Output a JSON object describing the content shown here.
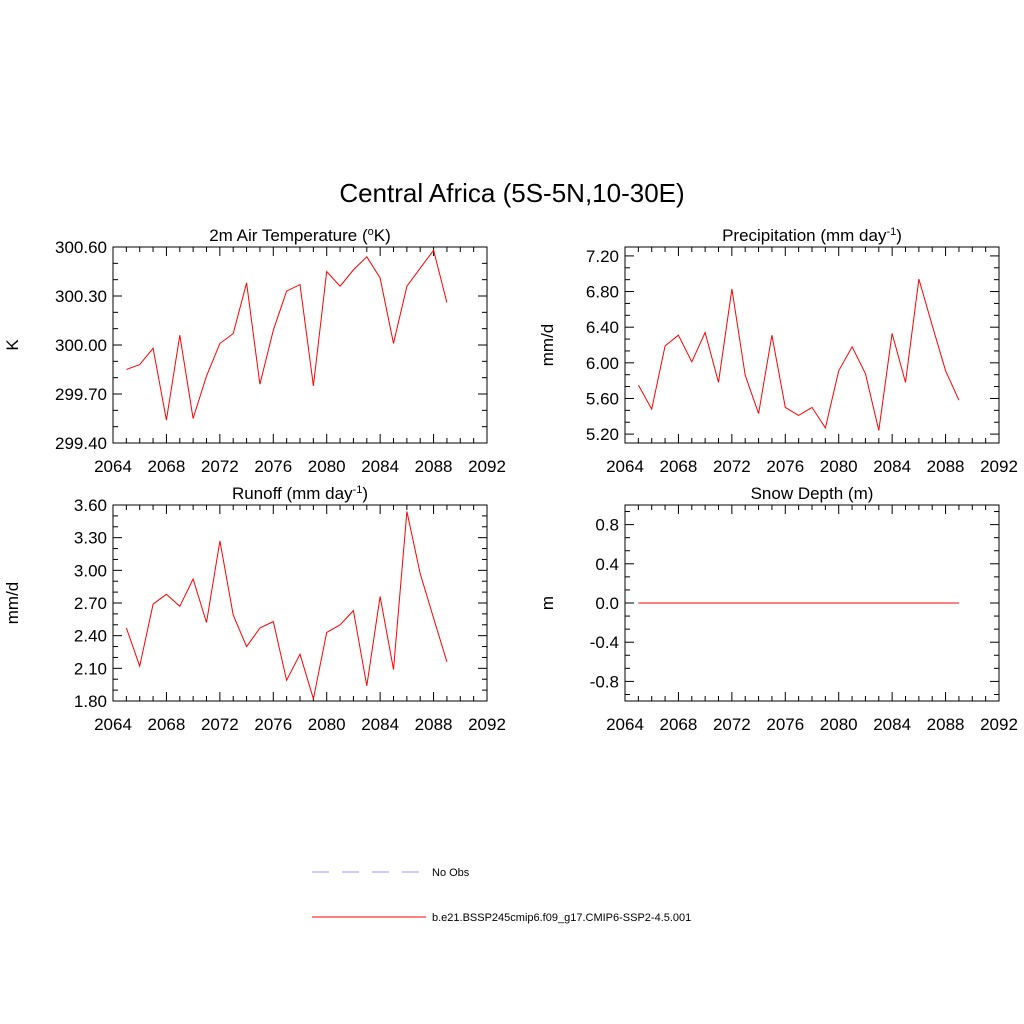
{
  "figure": {
    "title": "Central Africa (5S-5N,10-30E)"
  },
  "legend": {
    "placement": "bottom-center",
    "entries": [
      {
        "label": "No Obs",
        "color": "#9a9aff",
        "style": "dashed"
      },
      {
        "label": "b.e21.BSSP245cmip6.f09_g17.CMIP6-SSP2-4.5.001",
        "color": "#ff0000",
        "style": "solid"
      }
    ]
  },
  "chart_data": [
    {
      "type": "line",
      "title_main": "2m Air Temperature (",
      "title_sup": "o",
      "title_tail": "K)",
      "ylabel": "K",
      "xlim": [
        2064,
        2092
      ],
      "ylim": [
        299.4,
        300.6
      ],
      "xticks": [
        "2064",
        "2068",
        "2072",
        "2076",
        "2080",
        "2084",
        "2088",
        "2092"
      ],
      "yticks": [
        "299.40",
        "299.70",
        "300.00",
        "300.30",
        "300.60"
      ],
      "series": [
        {
          "color": "#ff0000",
          "x": [
            2065,
            2066,
            2067,
            2068,
            2069,
            2070,
            2071,
            2072,
            2073,
            2074,
            2075,
            2076,
            2077,
            2078,
            2079,
            2080,
            2081,
            2082,
            2083,
            2084,
            2085,
            2086,
            2087,
            2088,
            2089
          ],
          "y": [
            299.85,
            299.88,
            299.98,
            299.54,
            300.06,
            299.55,
            299.81,
            300.01,
            300.07,
            300.38,
            299.76,
            300.09,
            300.33,
            300.37,
            299.75,
            300.45,
            300.36,
            300.46,
            300.54,
            300.41,
            300.01,
            300.36,
            300.47,
            300.58,
            300.26
          ]
        }
      ]
    },
    {
      "type": "line",
      "title_main": "Precipitation (mm day",
      "title_sup": "-1",
      "title_tail": ")",
      "ylabel": "mm/d",
      "xlim": [
        2064,
        2092
      ],
      "ylim": [
        5.1,
        7.3
      ],
      "xticks": [
        "2064",
        "2068",
        "2072",
        "2076",
        "2080",
        "2084",
        "2088",
        "2092"
      ],
      "yticks": [
        "5.20",
        "5.60",
        "6.00",
        "6.40",
        "6.80",
        "7.20"
      ],
      "series": [
        {
          "color": "#ff0000",
          "x": [
            2065,
            2066,
            2067,
            2068,
            2069,
            2070,
            2071,
            2072,
            2073,
            2074,
            2075,
            2076,
            2077,
            2078,
            2079,
            2080,
            2081,
            2082,
            2083,
            2084,
            2085,
            2086,
            2087,
            2088,
            2089
          ],
          "y": [
            5.75,
            5.48,
            6.19,
            6.31,
            6.01,
            6.34,
            5.78,
            6.83,
            5.86,
            5.43,
            6.31,
            5.5,
            5.41,
            5.5,
            5.27,
            5.91,
            6.18,
            5.88,
            5.24,
            6.33,
            5.78,
            6.94,
            6.42,
            5.91,
            5.58
          ]
        }
      ]
    },
    {
      "type": "line",
      "title_main": "Runoff (mm day",
      "title_sup": "-1",
      "title_tail": ")",
      "ylabel": "mm/d",
      "xlim": [
        2064,
        2092
      ],
      "ylim": [
        1.8,
        3.6
      ],
      "xticks": [
        "2064",
        "2068",
        "2072",
        "2076",
        "2080",
        "2084",
        "2088",
        "2092"
      ],
      "yticks": [
        "1.80",
        "2.10",
        "2.40",
        "2.70",
        "3.00",
        "3.30",
        "3.60"
      ],
      "series": [
        {
          "color": "#ff0000",
          "x": [
            2065,
            2066,
            2067,
            2068,
            2069,
            2070,
            2071,
            2072,
            2073,
            2074,
            2075,
            2076,
            2077,
            2078,
            2079,
            2080,
            2081,
            2082,
            2083,
            2084,
            2085,
            2086,
            2087,
            2088,
            2089
          ],
          "y": [
            2.47,
            2.12,
            2.69,
            2.78,
            2.67,
            2.92,
            2.52,
            3.27,
            2.59,
            2.3,
            2.47,
            2.53,
            1.99,
            2.23,
            1.82,
            2.43,
            2.5,
            2.63,
            1.94,
            2.76,
            2.09,
            3.54,
            2.97,
            2.56,
            2.16
          ]
        }
      ]
    },
    {
      "type": "line",
      "title_main": "Snow Depth (m)",
      "title_sup": "",
      "title_tail": "",
      "ylabel": "m",
      "xlim": [
        2064,
        2092
      ],
      "ylim": [
        -1.0,
        1.0
      ],
      "xticks": [
        "2064",
        "2068",
        "2072",
        "2076",
        "2080",
        "2084",
        "2088",
        "2092"
      ],
      "yticks": [
        "-0.8",
        "-0.4",
        "0.0",
        "0.4",
        "0.8"
      ],
      "series": [
        {
          "color": "#ff0000",
          "x": [
            2065,
            2066,
            2067,
            2068,
            2069,
            2070,
            2071,
            2072,
            2073,
            2074,
            2075,
            2076,
            2077,
            2078,
            2079,
            2080,
            2081,
            2082,
            2083,
            2084,
            2085,
            2086,
            2087,
            2088,
            2089
          ],
          "y": [
            0,
            0,
            0,
            0,
            0,
            0,
            0,
            0,
            0,
            0,
            0,
            0,
            0,
            0,
            0,
            0,
            0,
            0,
            0,
            0,
            0,
            0,
            0,
            0,
            0
          ]
        }
      ]
    }
  ]
}
